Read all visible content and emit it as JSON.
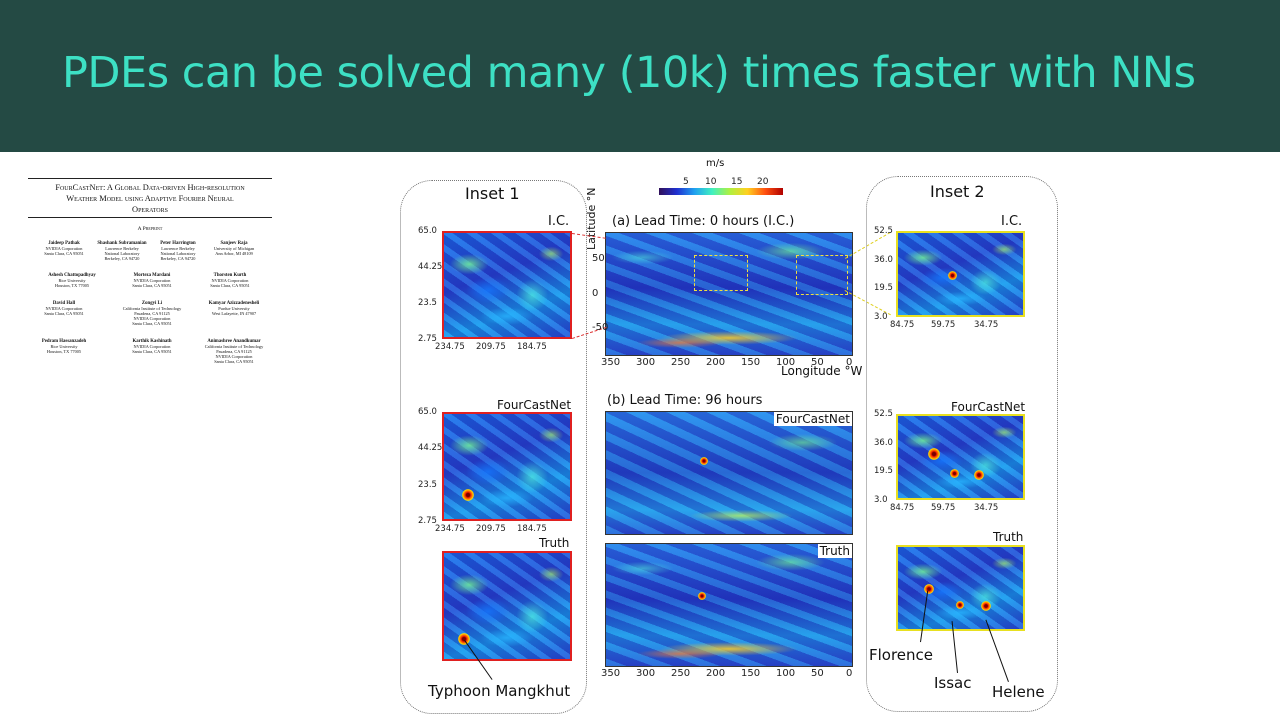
{
  "slide": {
    "title": "PDEs can be solved many (10k) times faster with NNs"
  },
  "paper": {
    "title_line1": "FourCastNet: A Global Data-driven High-resolution",
    "title_line2": "Weather Model using Adaptive Fourier Neural",
    "title_line3": "Operators",
    "preprint": "A Preprint",
    "authors": [
      {
        "name": "Jaideep Pathak",
        "aff": "NVIDIA Corporation\nSanta Clara, CA 95051"
      },
      {
        "name": "Shashank Subramanian",
        "aff": "Lawrence Berkeley\nNational Laboratory\nBerkeley, CA 94720"
      },
      {
        "name": "Peter Harrington",
        "aff": "Lawrence Berkeley\nNational Laboratory\nBerkeley, CA 94720"
      },
      {
        "name": "Sanjeev Raja",
        "aff": "University of Michigan\nAnn Arbor, MI 48109"
      },
      {
        "name": "Ashesh Chattopadhyay",
        "aff": "Rice University\nHouston, TX 77005"
      },
      {
        "name": "Morteza Mardani",
        "aff": "NVIDIA Corporation\nSanta Clara, CA 95051"
      },
      {
        "name": "Thorsten Kurth",
        "aff": "NVIDIA Corporation\nSanta Clara, CA 95051"
      },
      {
        "name": "David Hall",
        "aff": "NVIDIA Corporation\nSanta Clara, CA 95051"
      },
      {
        "name": "Zongyi Li",
        "aff": "California Institute of Technology\nPasadena, CA 91125\nNVIDIA Corporation\nSanta Clara, CA 95051"
      },
      {
        "name": "Kamyar Azizzadenesheli",
        "aff": "Purdue University\nWest Lafayette, IN 47907"
      },
      {
        "name": "Pedram Hassanzadeh",
        "aff": "Rice University\nHouston, TX 77005"
      },
      {
        "name": "Karthik Kashinath",
        "aff": "NVIDIA Corporation\nSanta Clara, CA 95051"
      },
      {
        "name": "Animashree Anandkumar",
        "aff": "California Institute of Technology\nPasadena, CA 91125\nNVIDIA Corporation\nSanta Clara, CA 95051"
      }
    ]
  },
  "figure": {
    "colorbar": {
      "unit": "m/s",
      "ticks": [
        "5",
        "10",
        "15",
        "20"
      ]
    },
    "inset1": {
      "title": "Inset 1",
      "ic_label": "I.C.",
      "forecast_label": "FourCastNet",
      "truth_label": "Truth",
      "yticks": [
        "65.0",
        "44.25",
        "23.5",
        "2.75"
      ],
      "xticks": [
        "234.75",
        "209.75",
        "184.75"
      ],
      "annotation": "Typhoon Mangkhut"
    },
    "inset2": {
      "title": "Inset 2",
      "ic_label": "I.C.",
      "forecast_label": "FourCastNet",
      "truth_label": "Truth",
      "yticks": [
        "52.5",
        "36.0",
        "19.5",
        "3.0"
      ],
      "xticks": [
        "84.75",
        "59.75",
        "34.75"
      ],
      "annotations": [
        "Florence",
        "Issac",
        "Helene"
      ]
    },
    "center": {
      "panel_a_title": "(a) Lead Time: 0 hours (I.C.)",
      "panel_b_title": "(b) Lead Time: 96 hours",
      "forecast_label": "FourCastNet",
      "truth_label": "Truth",
      "ylabel": "Latitude °N",
      "xlabel": "Longitude °W",
      "yticks": [
        "50",
        "0",
        "-50"
      ],
      "xticks": [
        "350",
        "300",
        "250",
        "200",
        "150",
        "100",
        "50",
        "0"
      ]
    }
  }
}
